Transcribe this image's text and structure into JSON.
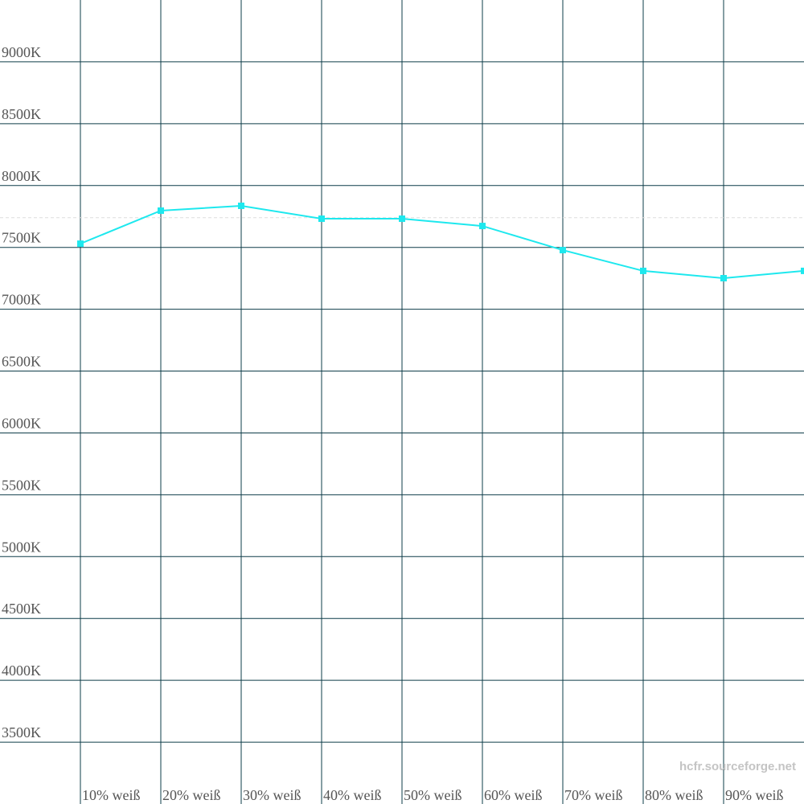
{
  "chart_data": {
    "type": "line",
    "categories": [
      "10% weiß",
      "20% weiß",
      "30% weiß",
      "40% weiß",
      "50% weiß",
      "60% weiß",
      "70% weiß",
      "80% weiß",
      "90% weiß",
      null
    ],
    "series": [
      {
        "name": null,
        "color": "#1ee8ee",
        "values": [
          7530,
          7797,
          7836,
          7732,
          7732,
          7673,
          7478,
          7310,
          7251,
          7310
        ]
      }
    ],
    "reference_line": 7740,
    "ylim": [
      3000,
      9500
    ],
    "yticks": [
      {
        "value": 3500,
        "label": "3500K"
      },
      {
        "value": 4000,
        "label": "4000K"
      },
      {
        "value": 4500,
        "label": "4500K"
      },
      {
        "value": 5000,
        "label": "5000K"
      },
      {
        "value": 5500,
        "label": "5500K"
      },
      {
        "value": 6000,
        "label": "6000K"
      },
      {
        "value": 6500,
        "label": "6500K"
      },
      {
        "value": 7000,
        "label": "7000K"
      },
      {
        "value": 7500,
        "label": "7500K"
      },
      {
        "value": 8000,
        "label": "8000K"
      },
      {
        "value": 8500,
        "label": "8500K"
      },
      {
        "value": 9000,
        "label": "9000K"
      }
    ],
    "grid": true,
    "watermark": "hcfr.sourceforge.net"
  }
}
